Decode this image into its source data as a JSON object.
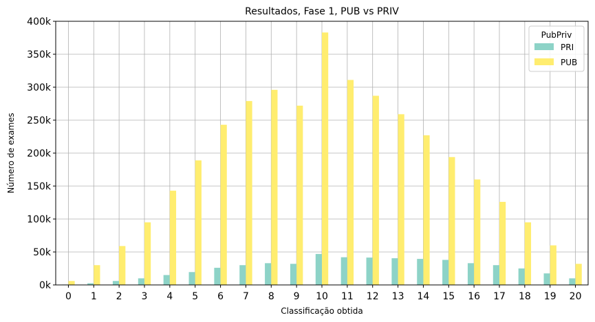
{
  "chart_data": {
    "type": "bar",
    "title": "Resultados, Fase 1, PUB vs PRIV",
    "xlabel": "Classificação obtida",
    "ylabel": "Número de exames",
    "categories": [
      "0",
      "1",
      "2",
      "3",
      "4",
      "5",
      "6",
      "7",
      "8",
      "9",
      "10",
      "11",
      "12",
      "13",
      "14",
      "15",
      "16",
      "17",
      "18",
      "19",
      "20"
    ],
    "series": [
      {
        "name": "PRI",
        "color": "#8dd3c7",
        "values": [
          600,
          2500,
          6000,
          10000,
          15000,
          19500,
          26000,
          30000,
          33000,
          32000,
          47000,
          42000,
          41500,
          40500,
          39500,
          38000,
          33000,
          30000,
          25000,
          17500,
          10000
        ]
      },
      {
        "name": "PUB",
        "color": "#ffed6f",
        "values": [
          6000,
          30000,
          59000,
          95000,
          143000,
          189000,
          243000,
          279000,
          296000,
          272000,
          383000,
          311000,
          287000,
          259000,
          227000,
          194000,
          160000,
          126000,
          95000,
          60000,
          32000
        ]
      }
    ],
    "ylim": [
      0,
      400000
    ],
    "yticks": [
      0,
      50000,
      100000,
      150000,
      200000,
      250000,
      300000,
      350000,
      400000
    ],
    "ytick_labels": [
      "0k",
      "50k",
      "100k",
      "150k",
      "200k",
      "250k",
      "300k",
      "350k",
      "400k"
    ],
    "grid": true,
    "legend": {
      "title": "PubPriv",
      "placement": "top-right"
    }
  }
}
